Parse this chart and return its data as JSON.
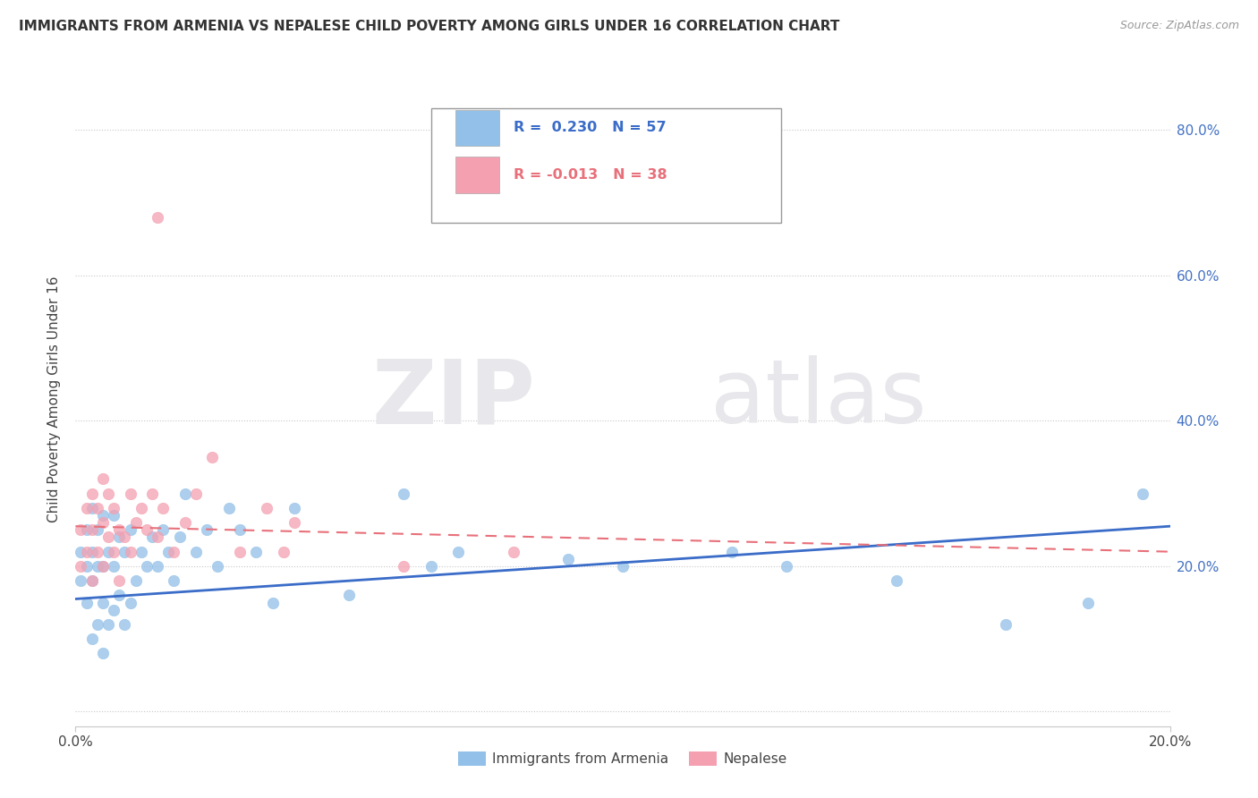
{
  "title": "IMMIGRANTS FROM ARMENIA VS NEPALESE CHILD POVERTY AMONG GIRLS UNDER 16 CORRELATION CHART",
  "source": "Source: ZipAtlas.com",
  "ylabel": "Child Poverty Among Girls Under 16",
  "xlim": [
    0.0,
    0.2
  ],
  "ylim": [
    -0.02,
    0.88
  ],
  "yticks": [
    0.0,
    0.2,
    0.4,
    0.6,
    0.8
  ],
  "ytick_labels": [
    "",
    "20.0%",
    "40.0%",
    "60.0%",
    "80.0%"
  ],
  "xticks": [
    0.0,
    0.2
  ],
  "xtick_labels": [
    "0.0%",
    "20.0%"
  ],
  "legend_label1": "Immigrants from Armenia",
  "legend_label2": "Nepalese",
  "R1": 0.23,
  "N1": 57,
  "R2": -0.013,
  "N2": 38,
  "color1": "#92C0E8",
  "color2": "#F4A0B0",
  "line1_color": "#3A6CC8",
  "line2_color": "#E8707A",
  "watermark_zip": "ZIP",
  "watermark_atlas": "atlas",
  "scatter1_x": [
    0.001,
    0.001,
    0.002,
    0.002,
    0.002,
    0.003,
    0.003,
    0.003,
    0.003,
    0.004,
    0.004,
    0.004,
    0.005,
    0.005,
    0.005,
    0.005,
    0.006,
    0.006,
    0.007,
    0.007,
    0.007,
    0.008,
    0.008,
    0.009,
    0.009,
    0.01,
    0.01,
    0.011,
    0.012,
    0.013,
    0.014,
    0.015,
    0.016,
    0.017,
    0.018,
    0.019,
    0.02,
    0.022,
    0.024,
    0.026,
    0.028,
    0.03,
    0.033,
    0.036,
    0.04,
    0.05,
    0.06,
    0.065,
    0.07,
    0.09,
    0.1,
    0.12,
    0.13,
    0.15,
    0.17,
    0.185,
    0.195
  ],
  "scatter1_y": [
    0.18,
    0.22,
    0.15,
    0.2,
    0.25,
    0.1,
    0.18,
    0.22,
    0.28,
    0.12,
    0.2,
    0.25,
    0.08,
    0.15,
    0.2,
    0.27,
    0.12,
    0.22,
    0.14,
    0.2,
    0.27,
    0.16,
    0.24,
    0.12,
    0.22,
    0.15,
    0.25,
    0.18,
    0.22,
    0.2,
    0.24,
    0.2,
    0.25,
    0.22,
    0.18,
    0.24,
    0.3,
    0.22,
    0.25,
    0.2,
    0.28,
    0.25,
    0.22,
    0.15,
    0.28,
    0.16,
    0.3,
    0.2,
    0.22,
    0.21,
    0.2,
    0.22,
    0.2,
    0.18,
    0.12,
    0.15,
    0.3
  ],
  "scatter2_x": [
    0.001,
    0.001,
    0.002,
    0.002,
    0.003,
    0.003,
    0.003,
    0.004,
    0.004,
    0.005,
    0.005,
    0.005,
    0.006,
    0.006,
    0.007,
    0.007,
    0.008,
    0.008,
    0.009,
    0.01,
    0.01,
    0.011,
    0.012,
    0.013,
    0.014,
    0.015,
    0.016,
    0.018,
    0.02,
    0.022,
    0.025,
    0.03,
    0.035,
    0.038,
    0.04,
    0.06,
    0.08,
    0.015
  ],
  "scatter2_y": [
    0.2,
    0.25,
    0.22,
    0.28,
    0.18,
    0.25,
    0.3,
    0.22,
    0.28,
    0.2,
    0.26,
    0.32,
    0.24,
    0.3,
    0.22,
    0.28,
    0.18,
    0.25,
    0.24,
    0.22,
    0.3,
    0.26,
    0.28,
    0.25,
    0.3,
    0.24,
    0.28,
    0.22,
    0.26,
    0.3,
    0.35,
    0.22,
    0.28,
    0.22,
    0.26,
    0.2,
    0.22,
    0.68
  ],
  "line1_x0": 0.0,
  "line1_y0": 0.155,
  "line1_x1": 0.2,
  "line1_y1": 0.255,
  "line2_x0": 0.0,
  "line2_y0": 0.255,
  "line2_x1": 0.2,
  "line2_y1": 0.22
}
